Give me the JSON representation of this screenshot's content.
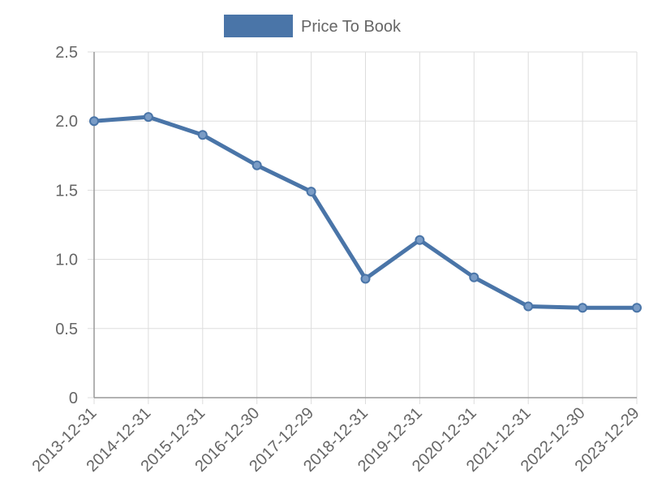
{
  "chart_data": {
    "type": "line",
    "categories": [
      "2013-12-31",
      "2014-12-31",
      "2015-12-31",
      "2016-12-30",
      "2017-12-29",
      "2018-12-31",
      "2019-12-31",
      "2020-12-31",
      "2021-12-31",
      "2022-12-30",
      "2023-12-29"
    ],
    "series": [
      {
        "name": "Price To Book",
        "color": "#4a75a8",
        "values": [
          2.0,
          2.03,
          1.9,
          1.68,
          1.49,
          0.86,
          1.14,
          0.87,
          0.66,
          0.65,
          0.65
        ]
      }
    ],
    "ylim": [
      0,
      2.5
    ],
    "yticks": [
      0,
      0.5,
      {
        "value": 1,
        "label": "1.0"
      },
      1.5,
      {
        "value": 2,
        "label": "2.0"
      },
      2.5
    ],
    "grid": true,
    "legend": "top"
  }
}
